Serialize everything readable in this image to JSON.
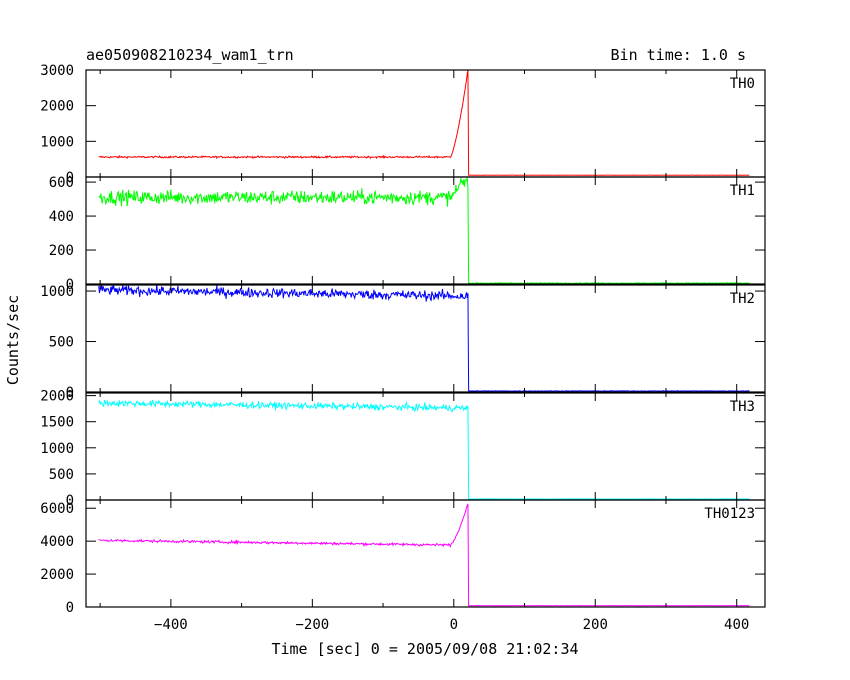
{
  "chart_data": {
    "type": "line",
    "title": "ae050908210234_wam1_trn",
    "subtitle": "Bin time: 1.0 s",
    "xlabel": "Time [sec] 0 = 2005/09/08 21:02:34",
    "ylabel": "Counts/sec",
    "xlim": [
      -520,
      440
    ],
    "x_ticks": [
      -400,
      -200,
      0,
      200,
      400
    ],
    "x_tick_labels": [
      "−400",
      "−200",
      "0",
      "200",
      "400"
    ],
    "x_start": -502,
    "x_end": 418,
    "burst_end_x": 20,
    "panels": [
      {
        "name": "TH0",
        "color": "#ff0000",
        "ylim": [
          0,
          3000
        ],
        "y_ticks": [
          0,
          1000,
          2000,
          3000
        ],
        "y_tick_labels": [
          "0",
          "1000",
          "2000",
          "3000"
        ],
        "baseline_mean": 560,
        "baseline_noise": 18,
        "rise_start": -5,
        "peak_x": 20,
        "peak_value": 3000,
        "post_value": 50
      },
      {
        "name": "TH1",
        "color": "#00ff00",
        "ylim": [
          0,
          630
        ],
        "y_ticks": [
          0,
          200,
          400,
          600
        ],
        "y_tick_labels": [
          "0",
          "200",
          "400",
          "600"
        ],
        "baseline_mean": 510,
        "baseline_noise": 30,
        "rise_start": -5,
        "peak_x": 10,
        "peak_value": 600,
        "post_value": 5
      },
      {
        "name": "TH2",
        "color": "#0000ff",
        "ylim": [
          0,
          1060
        ],
        "y_ticks": [
          0,
          500,
          1000
        ],
        "y_tick_labels": [
          "0",
          "500",
          "1000"
        ],
        "baseline_start": 1010,
        "baseline_end": 950,
        "baseline_noise": 35,
        "post_value": 10
      },
      {
        "name": "TH3",
        "color": "#00ffff",
        "ylim": [
          0,
          2050
        ],
        "y_ticks": [
          0,
          500,
          1000,
          1500,
          2000
        ],
        "y_tick_labels": [
          "0",
          "500",
          "1000",
          "1500",
          "2000"
        ],
        "baseline_start": 1860,
        "baseline_end": 1760,
        "baseline_noise": 45,
        "post_value": 20
      },
      {
        "name": "TH0123",
        "color": "#ff00ff",
        "ylim": [
          0,
          6500
        ],
        "y_ticks": [
          0,
          2000,
          4000,
          6000
        ],
        "y_tick_labels": [
          "0",
          "2000",
          "4000",
          "6000"
        ],
        "baseline_start": 4050,
        "baseline_end": 3750,
        "baseline_noise": 55,
        "rise_start": -5,
        "peak_x": 20,
        "peak_value": 6300,
        "post_value": 80
      }
    ]
  }
}
